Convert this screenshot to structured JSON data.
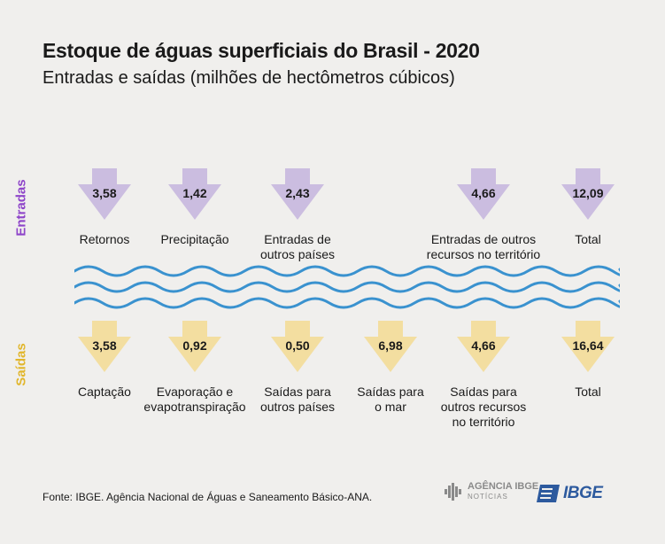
{
  "header": {
    "title": "Estoque de águas superficiais do Brasil - 2020",
    "subtitle": "Entradas e saídas (milhões de hectômetros cúbicos)"
  },
  "colors": {
    "entradas": "#cbbde0",
    "saidas": "#f3dea0",
    "entradas_label": "#8e44c9",
    "saidas_label": "#e1b62c",
    "waves": "#3a92cf",
    "ibge_blue": "#2d5a9e"
  },
  "entradas": {
    "label": "Entradas",
    "items": [
      {
        "value": "3,58",
        "label": "Retornos"
      },
      {
        "value": "1,42",
        "label": "Precipitação"
      },
      {
        "value": "2,43",
        "label": "Entradas de\noutros países"
      },
      {
        "value": "4,66",
        "label": "Entradas de outros\nrecursos no território"
      },
      {
        "value": "12,09",
        "label": "Total"
      }
    ]
  },
  "saidas": {
    "label": "Saídas",
    "items": [
      {
        "value": "3,58",
        "label": "Captação"
      },
      {
        "value": "0,92",
        "label": "Evaporação e\nevapotranspiração"
      },
      {
        "value": "0,50",
        "label": "Saídas para\noutros países"
      },
      {
        "value": "6,98",
        "label": "Saídas para\no mar"
      },
      {
        "value": "4,66",
        "label": "Saídas para\noutros recursos\nno território"
      },
      {
        "value": "16,64",
        "label": "Total"
      }
    ]
  },
  "footer": {
    "source": "Fonte: IBGE. Agência Nacional de Águas e Saneamento Básico-ANA.",
    "logo_agencia": "AGÊNCIA IBGE",
    "logo_agencia_sub": "NOTÍCIAS",
    "logo_ibge": "IBGE"
  }
}
